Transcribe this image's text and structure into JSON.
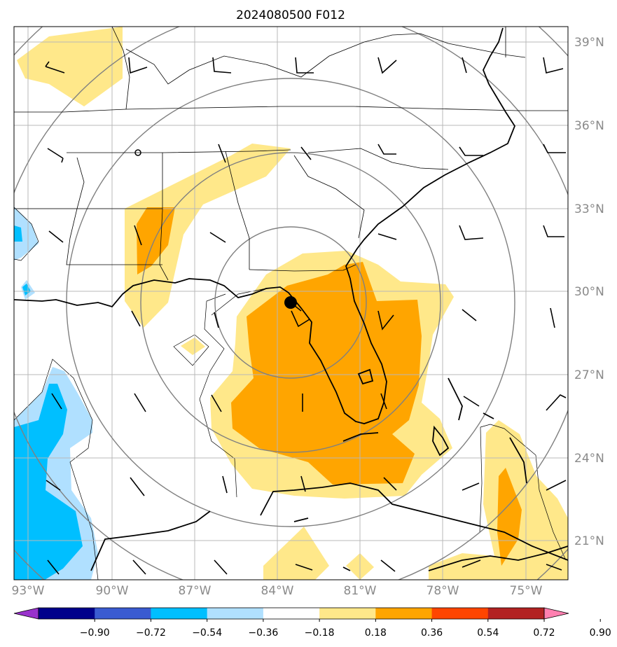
{
  "title": "2024080500 F012",
  "map": {
    "lon_labels": [
      "93°W",
      "90°W",
      "87°W",
      "84°W",
      "81°W",
      "78°W",
      "75°W"
    ],
    "lat_labels": [
      "39°N",
      "36°N",
      "33°N",
      "30°N",
      "27°N",
      "24°N",
      "21°N"
    ],
    "extent": {
      "lon_min": -93.0,
      "lon_max": -73.5,
      "lat_min": 19.4,
      "lat_max": 39.6
    },
    "storm_center": {
      "lon": -83.4,
      "lat": 29.6
    },
    "range_rings": "concentric gray circles around storm center"
  },
  "colorbar": {
    "ticks": [
      "−0.90",
      "−0.72",
      "−0.54",
      "−0.36",
      "−0.18",
      "0.18",
      "0.36",
      "0.54",
      "0.72",
      "0.90"
    ],
    "colors": [
      "#9932cc",
      "#00008b",
      "#3a5bd1",
      "#00bfff",
      "#b0e0ff",
      "#ffffff",
      "#ffe88a",
      "#ffa500",
      "#ff4500",
      "#b22222",
      "#ff80b0"
    ],
    "extend": "both"
  }
}
